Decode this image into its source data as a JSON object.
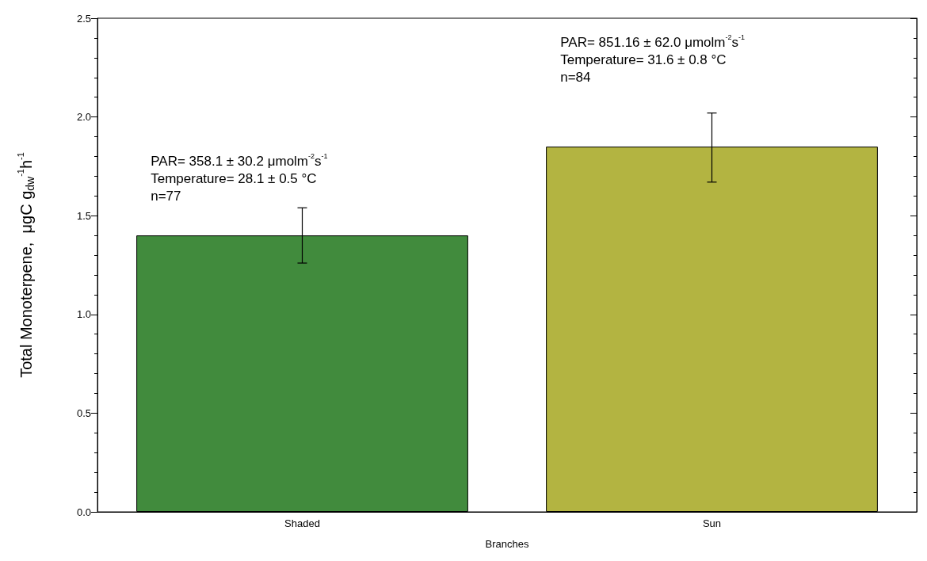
{
  "chart_data": {
    "type": "bar",
    "xlabel": "Branches",
    "ylabel": "Total Monoterpene,  μgC g$_{dw}$$^{-1}$h$^{-1}$",
    "categories": [
      "Shaded",
      "Sun"
    ],
    "values": [
      1.4,
      1.85
    ],
    "colors": [
      "#418b3d",
      "#b3b441"
    ],
    "errors": [
      [
        1.26,
        1.54
      ],
      [
        1.67,
        2.02
      ]
    ],
    "ylim": [
      0,
      2.5
    ],
    "yticks": [
      {
        "value": 0,
        "label": "0.0"
      },
      0.5,
      {
        "value": 1,
        "label": "1.0"
      },
      1.5,
      {
        "value": 2,
        "label": "2.0"
      },
      2.5
    ],
    "annotations": [
      "PAR= 358.1 ± 30.2 μmolm$^{-2}$s$^{-1}$\nTemperature= 28.1 ± 0.5 °C\nn=77",
      "PAR= 851.16 ± 62.0 μmolm$^{-2}$s$^{-1}$\nTemperature= 31.6 ± 0.8 °C\nn=84"
    ]
  }
}
